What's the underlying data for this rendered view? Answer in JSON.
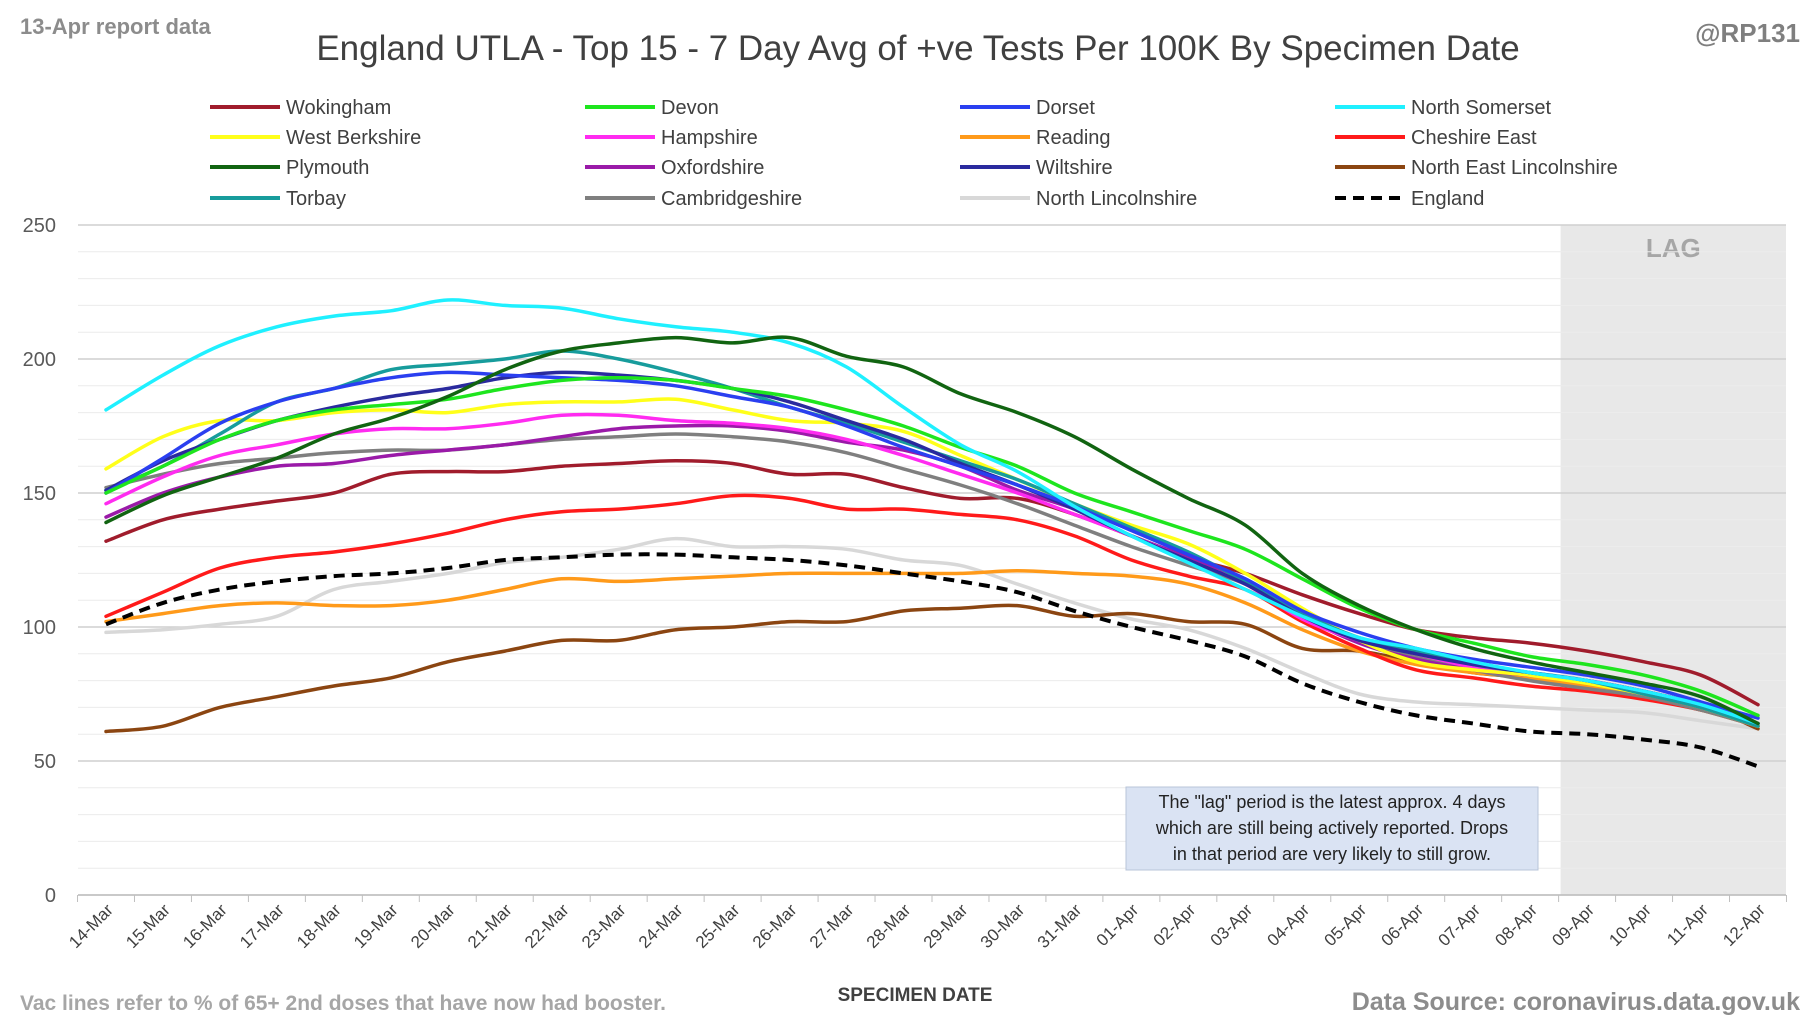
{
  "header": {
    "report_date": "13-Apr report data",
    "handle": "@RP131"
  },
  "footer": {
    "vac_note": "Vac lines refer to % of 65+ 2nd doses that have now had booster.",
    "source": "Data Source: coronavirus.data.gov.uk"
  },
  "lag_label": "LAG",
  "note_lines": [
    "The \"lag\" period is the latest approx. 4 days",
    "which are still being actively reported. Drops",
    "in that period are very likely to still grow."
  ],
  "chart_data": {
    "type": "line",
    "title": "England UTLA - Top 15 - 7 Day Avg of +ve Tests Per 100K By Specimen Date",
    "xlabel": "SPECIMEN DATE",
    "ylabel": "",
    "ylim": [
      0,
      250
    ],
    "yticks": [
      0,
      50,
      100,
      150,
      200,
      250
    ],
    "grid": true,
    "legend_position": "top",
    "lag_period": [
      "09-Apr",
      "12-Apr"
    ],
    "categories": [
      "14-Mar",
      "15-Mar",
      "16-Mar",
      "17-Mar",
      "18-Mar",
      "19-Mar",
      "20-Mar",
      "21-Mar",
      "22-Mar",
      "23-Mar",
      "24-Mar",
      "25-Mar",
      "26-Mar",
      "27-Mar",
      "28-Mar",
      "29-Mar",
      "30-Mar",
      "31-Mar",
      "01-Apr",
      "02-Apr",
      "03-Apr",
      "04-Apr",
      "05-Apr",
      "06-Apr",
      "07-Apr",
      "08-Apr",
      "09-Apr",
      "10-Apr",
      "11-Apr",
      "12-Apr"
    ],
    "series": [
      {
        "name": "Wokingham",
        "color": "#a01c2c",
        "dash": false,
        "values": [
          132,
          140,
          144,
          147,
          150,
          157,
          158,
          158,
          160,
          161,
          162,
          161,
          157,
          157,
          152,
          148,
          148,
          142,
          134,
          126,
          120,
          112,
          105,
          99,
          96,
          94,
          91,
          87,
          82,
          71
        ]
      },
      {
        "name": "Devon",
        "color": "#1ee51e",
        "dash": false,
        "values": [
          150,
          160,
          170,
          177,
          181,
          183,
          185,
          189,
          192,
          193,
          192,
          189,
          186,
          181,
          175,
          167,
          160,
          150,
          143,
          136,
          129,
          118,
          107,
          99,
          94,
          89,
          86,
          82,
          76,
          67
        ]
      },
      {
        "name": "Dorset",
        "color": "#2a3ff0",
        "dash": false,
        "values": [
          150,
          163,
          176,
          184,
          189,
          193,
          195,
          194,
          193,
          192,
          190,
          186,
          182,
          175,
          167,
          160,
          153,
          145,
          136,
          127,
          118,
          106,
          98,
          92,
          88,
          85,
          82,
          78,
          72,
          66
        ]
      },
      {
        "name": "North Somerset",
        "color": "#1ff0ff",
        "dash": false,
        "values": [
          181,
          194,
          205,
          212,
          216,
          218,
          222,
          220,
          219,
          215,
          212,
          210,
          206,
          197,
          182,
          168,
          158,
          145,
          134,
          124,
          114,
          104,
          96,
          92,
          87,
          83,
          80,
          76,
          71,
          64
        ]
      },
      {
        "name": "West Berkshire",
        "color": "#ffff1a",
        "dash": false,
        "values": [
          159,
          171,
          177,
          177,
          180,
          181,
          180,
          183,
          184,
          184,
          185,
          181,
          177,
          176,
          173,
          164,
          155,
          146,
          138,
          131,
          120,
          107,
          95,
          87,
          84,
          82,
          79,
          75,
          70,
          63
        ]
      },
      {
        "name": "Hampshire",
        "color": "#ff2bf0",
        "dash": false,
        "values": [
          146,
          156,
          164,
          168,
          172,
          174,
          174,
          176,
          179,
          179,
          177,
          176,
          174,
          170,
          164,
          157,
          150,
          142,
          134,
          125,
          116,
          103,
          95,
          90,
          85,
          82,
          80,
          76,
          71,
          64
        ]
      },
      {
        "name": "Reading",
        "color": "#ff9a1a",
        "dash": false,
        "values": [
          102,
          105,
          108,
          109,
          108,
          108,
          110,
          114,
          118,
          117,
          118,
          119,
          120,
          120,
          120,
          120,
          121,
          120,
          119,
          116,
          109,
          99,
          91,
          86,
          83,
          81,
          78,
          74,
          69,
          63
        ]
      },
      {
        "name": "Cheshire East",
        "color": "#ff1a1a",
        "dash": false,
        "values": [
          104,
          113,
          122,
          126,
          128,
          131,
          135,
          140,
          143,
          144,
          146,
          149,
          148,
          144,
          144,
          142,
          140,
          134,
          125,
          119,
          114,
          102,
          92,
          84,
          81,
          78,
          76,
          73,
          69,
          63
        ]
      },
      {
        "name": "Plymouth",
        "color": "#116411",
        "dash": false,
        "values": [
          139,
          149,
          156,
          163,
          172,
          178,
          186,
          196,
          203,
          206,
          208,
          206,
          208,
          201,
          197,
          187,
          180,
          171,
          159,
          148,
          138,
          120,
          108,
          99,
          92,
          87,
          83,
          79,
          74,
          64
        ]
      },
      {
        "name": "Oxfordshire",
        "color": "#9a1aa8",
        "dash": false,
        "values": [
          141,
          150,
          156,
          160,
          161,
          164,
          166,
          168,
          171,
          174,
          175,
          175,
          173,
          169,
          166,
          160,
          151,
          144,
          134,
          126,
          117,
          104,
          94,
          88,
          84,
          82,
          80,
          76,
          71,
          64
        ]
      },
      {
        "name": "Wiltshire",
        "color": "#2a2a9e",
        "dash": false,
        "values": [
          151,
          162,
          170,
          177,
          182,
          186,
          189,
          193,
          195,
          194,
          192,
          189,
          184,
          177,
          170,
          161,
          153,
          144,
          134,
          125,
          116,
          104,
          95,
          90,
          86,
          83,
          80,
          76,
          71,
          64
        ]
      },
      {
        "name": "North East Lincolnshire",
        "color": "#8b4511",
        "dash": false,
        "values": [
          61,
          63,
          70,
          74,
          78,
          81,
          87,
          91,
          95,
          95,
          99,
          100,
          102,
          102,
          106,
          107,
          108,
          104,
          105,
          102,
          101,
          92,
          91,
          87,
          83,
          81,
          78,
          75,
          71,
          62
        ]
      },
      {
        "name": "Torbay",
        "color": "#179c9c",
        "dash": false,
        "values": [
          151,
          160,
          172,
          184,
          189,
          196,
          198,
          200,
          203,
          200,
          195,
          189,
          182,
          176,
          169,
          162,
          155,
          146,
          137,
          128,
          117,
          105,
          96,
          91,
          86,
          83,
          80,
          75,
          70,
          63
        ]
      },
      {
        "name": "Cambridgeshire",
        "color": "#7f7f7f",
        "dash": false,
        "values": [
          152,
          157,
          161,
          163,
          165,
          166,
          166,
          168,
          170,
          171,
          172,
          171,
          169,
          165,
          159,
          153,
          146,
          138,
          130,
          123,
          116,
          104,
          95,
          89,
          84,
          80,
          77,
          74,
          69,
          63
        ]
      },
      {
        "name": "North Lincolnshire",
        "color": "#d8d8d8",
        "dash": false,
        "values": [
          98,
          99,
          101,
          104,
          114,
          117,
          120,
          124,
          126,
          129,
          133,
          130,
          130,
          129,
          125,
          123,
          116,
          109,
          103,
          99,
          92,
          83,
          75,
          72,
          71,
          70,
          69,
          68,
          65,
          62
        ]
      },
      {
        "name": "England",
        "color": "#000000",
        "dash": true,
        "values": [
          101,
          109,
          114,
          117,
          119,
          120,
          122,
          125,
          126,
          127,
          127,
          126,
          125,
          123,
          120,
          117,
          113,
          106,
          100,
          95,
          89,
          79,
          72,
          67,
          64,
          61,
          60,
          58,
          55,
          48
        ]
      }
    ]
  }
}
